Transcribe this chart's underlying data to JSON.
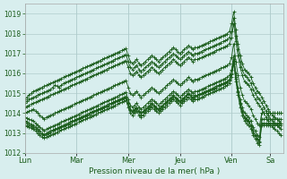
{
  "bg_color": "#d8eeee",
  "grid_color": "#b0cccc",
  "line_color": "#1a5c1a",
  "marker_color": "#1a5c1a",
  "xlabel": "Pression niveau de la mer( hPa )",
  "ylim": [
    1012,
    1019.5
  ],
  "yticks": [
    1012,
    1013,
    1014,
    1015,
    1016,
    1017,
    1018,
    1019
  ],
  "day_labels": [
    "Lun",
    "Mar",
    "Mer",
    "Jeu",
    "Ven",
    "Sa"
  ],
  "day_positions": [
    0,
    24,
    48,
    72,
    96,
    114
  ],
  "xlim": [
    0,
    120
  ],
  "series": [
    [
      1014.7,
      1014.8,
      1014.9,
      1015.0,
      1015.1,
      1015.15,
      1015.2,
      1015.25,
      1015.3,
      1015.35,
      1015.4,
      1015.45,
      1015.5,
      1015.55,
      1015.6,
      1015.65,
      1015.7,
      1015.75,
      1015.8,
      1015.85,
      1015.9,
      1015.95,
      1016.0,
      1016.05,
      1016.1,
      1016.15,
      1016.2,
      1016.25,
      1016.3,
      1016.35,
      1016.4,
      1016.45,
      1016.5,
      1016.55,
      1016.6,
      1016.65,
      1016.7,
      1016.75,
      1016.8,
      1016.85,
      1016.9,
      1016.95,
      1017.0,
      1017.05,
      1017.1,
      1017.15,
      1017.2,
      1017.25,
      1016.9,
      1016.6,
      1016.5,
      1016.6,
      1016.7,
      1016.5,
      1016.4,
      1016.5,
      1016.6,
      1016.7,
      1016.8,
      1016.9,
      1016.8,
      1016.7,
      1016.6,
      1016.7,
      1016.8,
      1016.9,
      1017.0,
      1017.1,
      1017.2,
      1017.3,
      1017.2,
      1017.1,
      1017.0,
      1017.1,
      1017.2,
      1017.3,
      1017.4,
      1017.3,
      1017.2,
      1017.3,
      1017.3,
      1017.35,
      1017.4,
      1017.45,
      1017.5,
      1017.55,
      1017.6,
      1017.65,
      1017.7,
      1017.75,
      1017.8,
      1017.85,
      1017.9,
      1017.95,
      1018.0,
      1018.1,
      1018.5,
      1019.1,
      1018.2,
      1017.5,
      1016.9,
      1016.5,
      1016.2,
      1016.1,
      1016.0,
      1015.8,
      1015.5,
      1015.3,
      1015.1,
      1015.0,
      1014.8,
      1014.6,
      1014.4,
      1014.2,
      1014.0,
      1013.9,
      1013.8,
      1013.7,
      1013.6,
      1013.5
    ],
    [
      1014.5,
      1014.6,
      1014.7,
      1014.75,
      1014.8,
      1014.85,
      1014.9,
      1014.95,
      1015.0,
      1015.05,
      1015.1,
      1015.15,
      1015.2,
      1015.3,
      1015.4,
      1015.35,
      1015.3,
      1015.4,
      1015.5,
      1015.55,
      1015.6,
      1015.65,
      1015.7,
      1015.75,
      1015.8,
      1015.85,
      1015.9,
      1015.95,
      1016.0,
      1016.05,
      1016.1,
      1016.15,
      1016.2,
      1016.25,
      1016.3,
      1016.35,
      1016.4,
      1016.45,
      1016.5,
      1016.55,
      1016.6,
      1016.65,
      1016.7,
      1016.75,
      1016.8,
      1016.85,
      1016.9,
      1016.95,
      1016.6,
      1016.3,
      1016.2,
      1016.3,
      1016.4,
      1016.2,
      1016.1,
      1016.2,
      1016.3,
      1016.4,
      1016.5,
      1016.6,
      1016.5,
      1016.4,
      1016.3,
      1016.4,
      1016.5,
      1016.6,
      1016.7,
      1016.8,
      1016.9,
      1017.0,
      1016.9,
      1016.8,
      1016.7,
      1016.8,
      1016.9,
      1017.0,
      1017.1,
      1017.0,
      1016.9,
      1017.0,
      1017.0,
      1017.05,
      1017.1,
      1017.15,
      1017.2,
      1017.25,
      1017.3,
      1017.35,
      1017.4,
      1017.45,
      1017.5,
      1017.55,
      1017.6,
      1017.65,
      1017.7,
      1017.8,
      1018.1,
      1018.8,
      1017.9,
      1017.2,
      1016.6,
      1016.2,
      1015.9,
      1015.8,
      1015.7,
      1015.5,
      1015.2,
      1015.0,
      1014.8,
      1014.7,
      1014.5,
      1014.3,
      1014.1,
      1013.9,
      1013.7,
      1013.6,
      1013.5,
      1013.4,
      1013.3,
      1013.2
    ],
    [
      1014.3,
      1014.35,
      1014.4,
      1014.45,
      1014.5,
      1014.55,
      1014.6,
      1014.65,
      1014.7,
      1014.75,
      1014.8,
      1014.85,
      1014.9,
      1014.95,
      1015.0,
      1015.05,
      1015.1,
      1015.15,
      1015.2,
      1015.25,
      1015.3,
      1015.35,
      1015.4,
      1015.45,
      1015.5,
      1015.55,
      1015.6,
      1015.65,
      1015.7,
      1015.75,
      1015.8,
      1015.85,
      1015.9,
      1015.95,
      1016.0,
      1016.05,
      1016.1,
      1016.15,
      1016.2,
      1016.25,
      1016.3,
      1016.35,
      1016.4,
      1016.45,
      1016.5,
      1016.55,
      1016.6,
      1016.65,
      1016.3,
      1016.0,
      1015.9,
      1016.0,
      1016.1,
      1015.9,
      1015.8,
      1015.9,
      1016.0,
      1016.1,
      1016.2,
      1016.3,
      1016.2,
      1016.1,
      1016.0,
      1016.1,
      1016.2,
      1016.3,
      1016.4,
      1016.5,
      1016.6,
      1016.7,
      1016.6,
      1016.5,
      1016.4,
      1016.5,
      1016.6,
      1016.7,
      1016.8,
      1016.7,
      1016.6,
      1016.7,
      1016.7,
      1016.75,
      1016.8,
      1016.85,
      1016.9,
      1016.95,
      1017.0,
      1017.05,
      1017.1,
      1017.15,
      1017.2,
      1017.25,
      1017.3,
      1017.35,
      1017.4,
      1017.5,
      1017.8,
      1018.5,
      1017.6,
      1016.9,
      1016.3,
      1015.9,
      1015.6,
      1015.5,
      1015.4,
      1015.2,
      1014.9,
      1014.7,
      1014.5,
      1014.4,
      1014.2,
      1014.0,
      1013.8,
      1013.6,
      1013.4,
      1013.3,
      1013.2,
      1013.1,
      1013.0,
      1012.9
    ],
    [
      1014.0,
      1014.05,
      1014.1,
      1014.15,
      1014.2,
      1014.1,
      1014.0,
      1013.9,
      1013.8,
      1013.7,
      1013.8,
      1013.85,
      1013.9,
      1013.95,
      1014.0,
      1014.05,
      1014.1,
      1014.15,
      1014.2,
      1014.25,
      1014.3,
      1014.35,
      1014.4,
      1014.45,
      1014.5,
      1014.55,
      1014.6,
      1014.65,
      1014.7,
      1014.75,
      1014.8,
      1014.85,
      1014.9,
      1014.95,
      1015.0,
      1015.05,
      1015.1,
      1015.15,
      1015.2,
      1015.25,
      1015.3,
      1015.35,
      1015.4,
      1015.45,
      1015.5,
      1015.55,
      1015.6,
      1015.65,
      1015.3,
      1015.0,
      1014.9,
      1015.0,
      1015.1,
      1014.9,
      1014.8,
      1014.9,
      1015.0,
      1015.1,
      1015.2,
      1015.3,
      1015.2,
      1015.1,
      1015.0,
      1015.1,
      1015.2,
      1015.3,
      1015.4,
      1015.5,
      1015.6,
      1015.7,
      1015.6,
      1015.5,
      1015.4,
      1015.5,
      1015.6,
      1015.7,
      1015.8,
      1015.7,
      1015.6,
      1015.7,
      1015.7,
      1015.75,
      1015.8,
      1015.85,
      1015.9,
      1015.95,
      1016.0,
      1016.05,
      1016.1,
      1016.15,
      1016.2,
      1016.25,
      1016.3,
      1016.35,
      1016.4,
      1016.5,
      1016.8,
      1017.5,
      1016.6,
      1015.9,
      1015.3,
      1014.9,
      1014.6,
      1014.5,
      1014.4,
      1014.2,
      1013.9,
      1013.7,
      1013.5,
      1013.4,
      1014.0,
      1014.0,
      1014.0,
      1014.0,
      1014.0,
      1014.0,
      1014.0,
      1014.0,
      1014.0,
      1014.0
    ],
    [
      1013.8,
      1013.75,
      1013.7,
      1013.65,
      1013.6,
      1013.5,
      1013.4,
      1013.3,
      1013.2,
      1013.1,
      1013.2,
      1013.25,
      1013.3,
      1013.35,
      1013.4,
      1013.45,
      1013.5,
      1013.55,
      1013.6,
      1013.65,
      1013.7,
      1013.75,
      1013.8,
      1013.85,
      1013.9,
      1013.95,
      1014.0,
      1014.05,
      1014.1,
      1014.15,
      1014.2,
      1014.25,
      1014.3,
      1014.35,
      1014.4,
      1014.45,
      1014.5,
      1014.55,
      1014.6,
      1014.65,
      1014.7,
      1014.75,
      1014.8,
      1014.85,
      1014.9,
      1014.95,
      1015.0,
      1015.05,
      1014.7,
      1014.4,
      1014.3,
      1014.4,
      1014.5,
      1014.3,
      1014.2,
      1014.3,
      1014.4,
      1014.5,
      1014.6,
      1014.7,
      1014.6,
      1014.5,
      1014.4,
      1014.5,
      1014.6,
      1014.7,
      1014.8,
      1014.9,
      1015.0,
      1015.1,
      1015.0,
      1014.9,
      1014.8,
      1014.9,
      1015.0,
      1015.1,
      1015.2,
      1015.1,
      1015.0,
      1015.1,
      1015.1,
      1015.15,
      1015.2,
      1015.25,
      1015.3,
      1015.35,
      1015.4,
      1015.45,
      1015.5,
      1015.55,
      1015.6,
      1015.65,
      1015.7,
      1015.75,
      1015.8,
      1015.9,
      1016.2,
      1016.9,
      1016.0,
      1015.3,
      1014.7,
      1014.3,
      1014.0,
      1013.9,
      1013.8,
      1013.6,
      1013.3,
      1013.1,
      1012.9,
      1012.8,
      1014.0,
      1014.0,
      1014.0,
      1014.0,
      1014.0,
      1014.0,
      1014.0,
      1014.0,
      1014.0,
      1014.0
    ],
    [
      1013.6,
      1013.55,
      1013.5,
      1013.45,
      1013.4,
      1013.3,
      1013.2,
      1013.1,
      1013.0,
      1012.9,
      1013.0,
      1013.05,
      1013.1,
      1013.15,
      1013.2,
      1013.25,
      1013.3,
      1013.35,
      1013.4,
      1013.45,
      1013.5,
      1013.55,
      1013.6,
      1013.65,
      1013.7,
      1013.75,
      1013.8,
      1013.85,
      1013.9,
      1013.95,
      1014.0,
      1014.05,
      1014.1,
      1014.15,
      1014.2,
      1014.25,
      1014.3,
      1014.35,
      1014.4,
      1014.45,
      1014.5,
      1014.55,
      1014.6,
      1014.65,
      1014.7,
      1014.75,
      1014.8,
      1014.85,
      1014.5,
      1014.2,
      1014.1,
      1014.2,
      1014.3,
      1014.1,
      1014.0,
      1014.1,
      1014.2,
      1014.3,
      1014.4,
      1014.5,
      1014.4,
      1014.3,
      1014.2,
      1014.3,
      1014.4,
      1014.5,
      1014.6,
      1014.7,
      1014.8,
      1014.9,
      1014.8,
      1014.7,
      1014.6,
      1014.7,
      1014.8,
      1014.9,
      1015.0,
      1014.9,
      1014.8,
      1014.9,
      1014.9,
      1014.95,
      1015.0,
      1015.05,
      1015.1,
      1015.15,
      1015.2,
      1015.25,
      1015.3,
      1015.35,
      1015.4,
      1015.45,
      1015.5,
      1015.55,
      1015.6,
      1015.7,
      1016.0,
      1016.7,
      1015.8,
      1015.1,
      1014.5,
      1014.1,
      1013.8,
      1013.7,
      1013.6,
      1013.4,
      1013.1,
      1012.9,
      1012.7,
      1012.6,
      1013.7,
      1013.7,
      1013.7,
      1013.7,
      1013.7,
      1013.7,
      1013.7,
      1013.7,
      1013.7,
      1013.7
    ],
    [
      1013.4,
      1013.35,
      1013.3,
      1013.25,
      1013.2,
      1013.1,
      1013.0,
      1012.9,
      1012.8,
      1012.75,
      1012.8,
      1012.85,
      1012.9,
      1012.95,
      1013.0,
      1013.05,
      1013.1,
      1013.15,
      1013.2,
      1013.25,
      1013.3,
      1013.35,
      1013.4,
      1013.45,
      1013.5,
      1013.55,
      1013.6,
      1013.65,
      1013.7,
      1013.75,
      1013.8,
      1013.85,
      1013.9,
      1013.95,
      1014.0,
      1014.05,
      1014.1,
      1014.15,
      1014.2,
      1014.25,
      1014.3,
      1014.35,
      1014.4,
      1014.45,
      1014.5,
      1014.55,
      1014.6,
      1014.65,
      1014.3,
      1014.0,
      1013.9,
      1014.0,
      1014.1,
      1013.9,
      1013.8,
      1013.9,
      1014.0,
      1014.1,
      1014.2,
      1014.3,
      1014.2,
      1014.1,
      1014.0,
      1014.1,
      1014.2,
      1014.3,
      1014.4,
      1014.5,
      1014.6,
      1014.7,
      1014.6,
      1014.5,
      1014.4,
      1014.5,
      1014.6,
      1014.7,
      1014.8,
      1014.7,
      1014.6,
      1014.7,
      1014.7,
      1014.75,
      1014.8,
      1014.85,
      1014.9,
      1014.95,
      1015.0,
      1015.05,
      1015.1,
      1015.15,
      1015.2,
      1015.25,
      1015.3,
      1015.35,
      1015.4,
      1015.5,
      1015.8,
      1016.5,
      1015.6,
      1014.9,
      1014.3,
      1013.9,
      1013.6,
      1013.5,
      1013.4,
      1013.2,
      1012.9,
      1012.7,
      1012.5,
      1012.4,
      1013.5,
      1013.5,
      1013.5,
      1013.5,
      1013.5,
      1013.5,
      1013.5,
      1013.5,
      1013.5,
      1013.5
    ],
    [
      1013.6,
      1013.5,
      1013.4,
      1013.35,
      1013.3,
      1013.2,
      1013.1,
      1013.0,
      1012.95,
      1012.9,
      1012.95,
      1013.0,
      1013.05,
      1013.1,
      1013.15,
      1013.2,
      1013.25,
      1013.3,
      1013.35,
      1013.4,
      1013.45,
      1013.5,
      1013.55,
      1013.6,
      1013.65,
      1013.7,
      1013.75,
      1013.8,
      1013.85,
      1013.9,
      1013.95,
      1014.0,
      1014.05,
      1014.1,
      1014.15,
      1014.2,
      1014.25,
      1014.3,
      1014.35,
      1014.4,
      1014.45,
      1014.5,
      1014.55,
      1014.6,
      1014.65,
      1014.7,
      1014.75,
      1014.8,
      1014.45,
      1014.15,
      1014.05,
      1014.15,
      1014.25,
      1014.05,
      1013.95,
      1014.05,
      1014.15,
      1014.25,
      1014.35,
      1014.45,
      1014.35,
      1014.25,
      1014.15,
      1014.25,
      1014.35,
      1014.45,
      1014.55,
      1014.65,
      1014.75,
      1014.85,
      1014.75,
      1014.65,
      1014.55,
      1014.65,
      1014.75,
      1014.85,
      1014.95,
      1014.85,
      1014.75,
      1014.85,
      1014.85,
      1014.9,
      1014.95,
      1015.0,
      1015.05,
      1015.1,
      1015.15,
      1015.2,
      1015.25,
      1015.3,
      1015.35,
      1015.4,
      1015.45,
      1015.5,
      1015.55,
      1015.65,
      1015.95,
      1016.65,
      1015.75,
      1015.05,
      1014.45,
      1014.05,
      1013.75,
      1013.65,
      1013.55,
      1013.35,
      1013.05,
      1012.85,
      1012.65,
      1012.55,
      1013.4,
      1013.4,
      1013.4,
      1013.4,
      1013.4,
      1013.4,
      1013.4,
      1013.4,
      1013.4,
      1013.4
    ]
  ]
}
